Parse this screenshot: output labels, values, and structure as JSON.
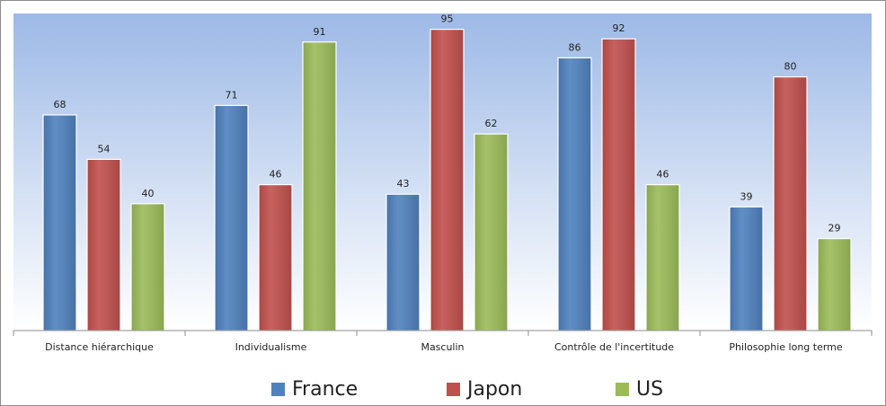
{
  "chart_data": {
    "type": "bar",
    "title": "",
    "xlabel": "",
    "ylabel": "",
    "ylim": [
      0,
      100
    ],
    "grid": false,
    "legend_position": "bottom",
    "categories": [
      "Distance hiérarchique",
      "Individualisme",
      "Masculin",
      "Contrôle de l'incertitude",
      "Philosophie long terme"
    ],
    "series": [
      {
        "name": "France",
        "color": "#4f81bd",
        "values": [
          68,
          71,
          43,
          86,
          39
        ]
      },
      {
        "name": "Japon",
        "color": "#c0504d",
        "values": [
          54,
          46,
          95,
          92,
          80
        ]
      },
      {
        "name": "US",
        "color": "#9bbb59",
        "values": [
          40,
          91,
          62,
          46,
          29
        ]
      }
    ],
    "plot_background": {
      "top_color": "#9db9e6",
      "bottom_color": "#ffffff"
    }
  }
}
